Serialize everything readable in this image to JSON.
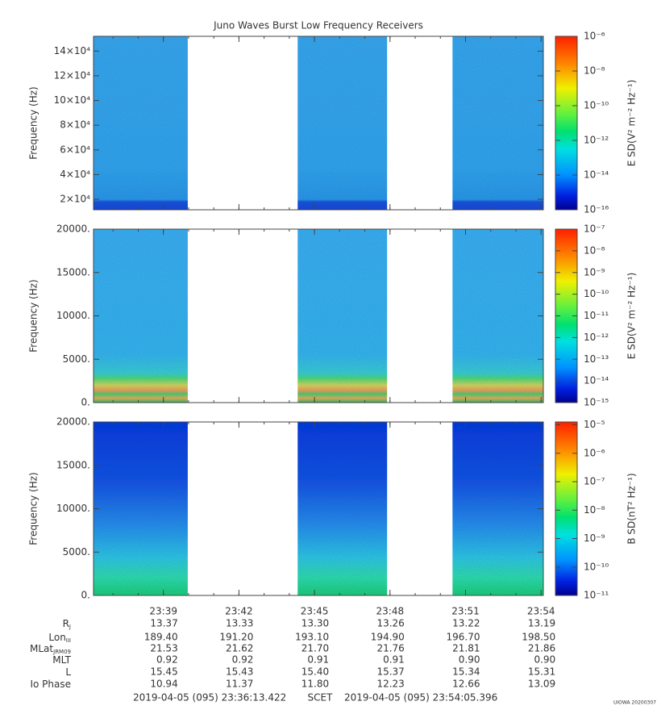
{
  "title": "Juno Waves Burst Low Frequency Receivers",
  "chart_data": [
    {
      "type": "spectrogram",
      "y_label": "Frequency (Hz)",
      "ylim": [
        11500,
        152000
      ],
      "yticks": [
        {
          "value": 20000,
          "label": "2×10⁴"
        },
        {
          "value": 40000,
          "label": "4×10⁴"
        },
        {
          "value": 60000,
          "label": "6×10⁴"
        },
        {
          "value": 80000,
          "label": "8×10⁴"
        },
        {
          "value": 100000,
          "label": "10×10⁴"
        },
        {
          "value": 120000,
          "label": "12×10⁴"
        },
        {
          "value": 140000,
          "label": "14×10⁴"
        }
      ],
      "segments": [
        [
          "23:36:13",
          "23:39:58"
        ],
        [
          "23:44:20",
          "23:47:53"
        ],
        [
          "23:50:29",
          "23:54:05"
        ]
      ],
      "colorbar_label": "E SD(V² m⁻² Hz⁻¹)",
      "zlim": [
        1e-16,
        1e-06
      ],
      "zlog": true,
      "zticks": [
        {
          "value": 1e-16,
          "label": "10⁻¹⁶"
        },
        {
          "value": 1e-14,
          "label": "10⁻¹⁴"
        },
        {
          "value": 1e-12,
          "label": "10⁻¹²"
        },
        {
          "value": 1e-10,
          "label": "10⁻¹⁰"
        },
        {
          "value": 1e-08,
          "label": "10⁻⁸"
        },
        {
          "value": 1e-06,
          "label": "10⁻⁶"
        }
      ]
    },
    {
      "type": "spectrogram",
      "y_label": "Frequency (Hz)",
      "ylim": [
        0,
        20000
      ],
      "yticks": [
        {
          "value": 0,
          "label": "0."
        },
        {
          "value": 5000,
          "label": "5000."
        },
        {
          "value": 10000,
          "label": "10000."
        },
        {
          "value": 15000,
          "label": "15000."
        },
        {
          "value": 20000,
          "label": "20000."
        }
      ],
      "segments": [
        [
          "23:36:13",
          "23:39:58"
        ],
        [
          "23:44:20",
          "23:47:53"
        ],
        [
          "23:50:29",
          "23:54:05"
        ]
      ],
      "colorbar_label": "E SD(V² m⁻² Hz⁻¹)",
      "zlim": [
        1e-15,
        1e-07
      ],
      "zlog": true,
      "zticks": [
        {
          "value": 1e-15,
          "label": "10⁻¹⁵"
        },
        {
          "value": 1e-14,
          "label": "10⁻¹⁴"
        },
        {
          "value": 1e-13,
          "label": "10⁻¹³"
        },
        {
          "value": 1e-12,
          "label": "10⁻¹²"
        },
        {
          "value": 1e-11,
          "label": "10⁻¹¹"
        },
        {
          "value": 1e-10,
          "label": "10⁻¹⁰"
        },
        {
          "value": 1e-09,
          "label": "10⁻⁹"
        },
        {
          "value": 1e-08,
          "label": "10⁻⁸"
        },
        {
          "value": 1e-07,
          "label": "10⁻⁷"
        }
      ]
    },
    {
      "type": "spectrogram",
      "y_label": "Frequency (Hz)",
      "ylim": [
        0,
        20000
      ],
      "yticks": [
        {
          "value": 0,
          "label": "0."
        },
        {
          "value": 5000,
          "label": "5000."
        },
        {
          "value": 10000,
          "label": "10000."
        },
        {
          "value": 15000,
          "label": "15000."
        },
        {
          "value": 20000,
          "label": "20000."
        }
      ],
      "segments": [
        [
          "23:36:13",
          "23:39:58"
        ],
        [
          "23:44:20",
          "23:47:53"
        ],
        [
          "23:50:29",
          "23:54:05"
        ]
      ],
      "colorbar_label": "B SD(nT² Hz⁻¹)",
      "zlim": [
        1e-11,
        1.26e-05
      ],
      "zlog": true,
      "zticks": [
        {
          "value": 1e-11,
          "label": "10⁻¹¹"
        },
        {
          "value": 1e-10,
          "label": "10⁻¹⁰"
        },
        {
          "value": 1e-09,
          "label": "10⁻⁹"
        },
        {
          "value": 1e-08,
          "label": "10⁻⁸"
        },
        {
          "value": 1e-07,
          "label": "10⁻⁷"
        },
        {
          "value": 1e-06,
          "label": "10⁻⁶"
        },
        {
          "value": 1e-05,
          "label": "10⁻⁵"
        }
      ],
      "xticks": [
        "23:39",
        "23:42",
        "23:45",
        "23:48",
        "23:51",
        "23:54"
      ]
    }
  ],
  "ephemeris": [
    {
      "label": "R",
      "sub": "J",
      "values": [
        "13.37",
        "13.33",
        "13.30",
        "13.26",
        "13.22",
        "13.19"
      ]
    },
    {
      "label": "Lon",
      "sub": "III",
      "values": [
        "189.40",
        "191.20",
        "193.10",
        "194.90",
        "196.70",
        "198.50"
      ]
    },
    {
      "label": "MLat",
      "sub": "JRM09",
      "values": [
        "21.53",
        "21.62",
        "21.70",
        "21.76",
        "21.81",
        "21.86"
      ]
    },
    {
      "label": "MLT",
      "values": [
        "0.92",
        "0.92",
        "0.91",
        "0.91",
        "0.90",
        "0.90"
      ]
    },
    {
      "label": "L",
      "values": [
        "15.45",
        "15.43",
        "15.40",
        "15.37",
        "15.34",
        "15.31"
      ]
    },
    {
      "label": "Io Phase",
      "values": [
        "10.94",
        "11.37",
        "11.80",
        "12.23",
        "12.66",
        "13.09"
      ]
    }
  ],
  "footer": {
    "start": "2019-04-05 (095) 23:36:13.422",
    "frame": "SCET",
    "end": "2019-04-05 (095) 23:54:05.396",
    "stamp": "UIOWA 20200307"
  }
}
